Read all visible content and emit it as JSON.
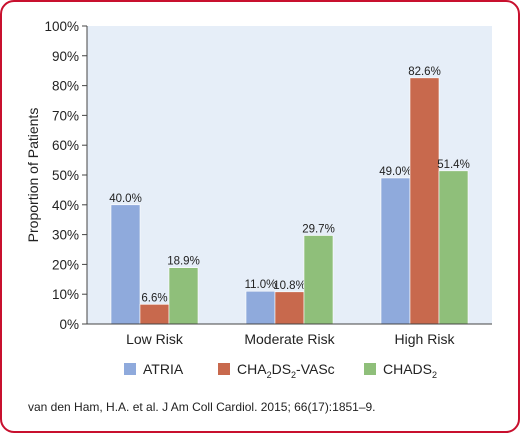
{
  "chart_data": {
    "type": "bar",
    "categories": [
      "Low Risk",
      "Moderate Risk",
      "High Risk"
    ],
    "series": [
      {
        "name": "ATRIA",
        "values": [
          40.0,
          11.0,
          49.0
        ],
        "labels": [
          "40.0%",
          "11.0%",
          "49.0%"
        ],
        "color": "#8faadc"
      },
      {
        "name": "CHA2DS2-VASc",
        "name_parts": {
          "a": "CHA",
          "s1": "2",
          "b": "DS",
          "s2": "2",
          "c": "-VASc"
        },
        "values": [
          6.6,
          10.8,
          82.6
        ],
        "labels": [
          "6.6%",
          "10.8%",
          "82.6%"
        ],
        "color": "#c8694d"
      },
      {
        "name": "CHADS2",
        "name_parts": {
          "a": "CHADS",
          "s1": "2"
        },
        "values": [
          18.9,
          29.7,
          51.4
        ],
        "labels": [
          "18.9%",
          "29.7%",
          "51.4%"
        ],
        "color": "#8fbf7a"
      }
    ],
    "yticks": [
      "0%",
      "10%",
      "20%",
      "30%",
      "40%",
      "50%",
      "60%",
      "70%",
      "80%",
      "90%",
      "100%"
    ],
    "ylabel": "Proportion of Patients",
    "ylim": [
      0,
      100
    ],
    "grid": false,
    "legend": "bottom",
    "plot_background": "#e6eef8"
  },
  "citation": "van den Ham, H.A. et al. J Am Coll Cardiol. 2015; 66(17):1851–9.",
  "colors": {
    "border": "#c8102e"
  }
}
